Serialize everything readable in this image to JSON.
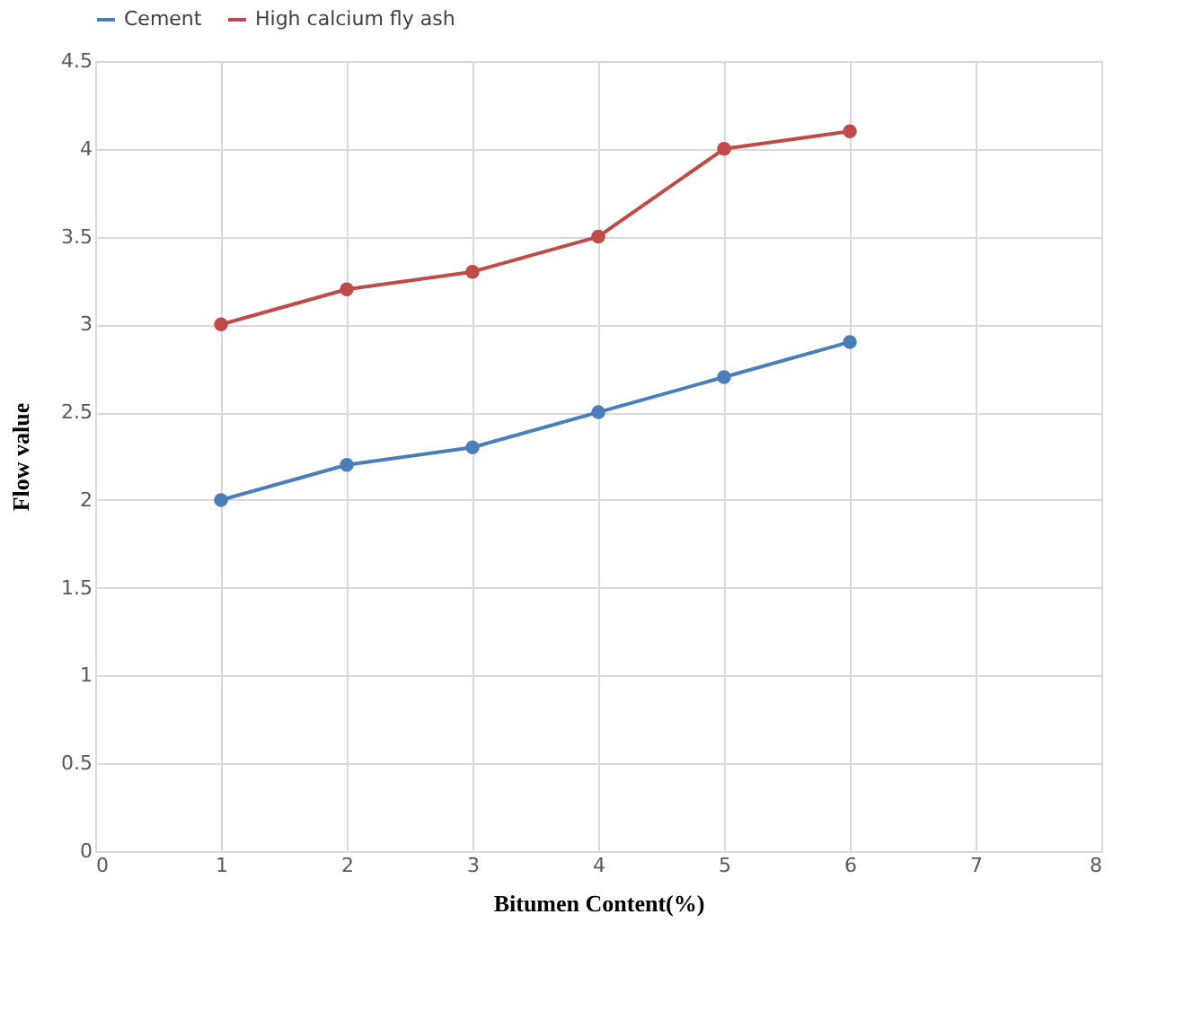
{
  "chart_data": {
    "type": "line",
    "x": [
      1,
      2,
      3,
      4,
      5,
      6
    ],
    "series": [
      {
        "name": "Cement",
        "color": "#4a7ebb",
        "values": [
          2.0,
          2.2,
          2.3,
          2.5,
          2.7,
          2.9
        ]
      },
      {
        "name": "High calcium fly ash",
        "color": "#be4b48",
        "values": [
          3.0,
          3.2,
          3.3,
          3.5,
          4.0,
          4.1
        ]
      }
    ],
    "xlabel": "Bitumen Content(%)",
    "ylabel": "Flow value",
    "xlim": [
      0,
      8
    ],
    "xticks": [
      0,
      1,
      2,
      3,
      4,
      5,
      6,
      7,
      8
    ],
    "ylim": [
      0,
      4.5
    ],
    "yticks": [
      0,
      0.5,
      1,
      1.5,
      2,
      2.5,
      3,
      3.5,
      4,
      4.5
    ],
    "grid": true,
    "legend": "top",
    "marker": "circle",
    "line_style": "solid"
  }
}
